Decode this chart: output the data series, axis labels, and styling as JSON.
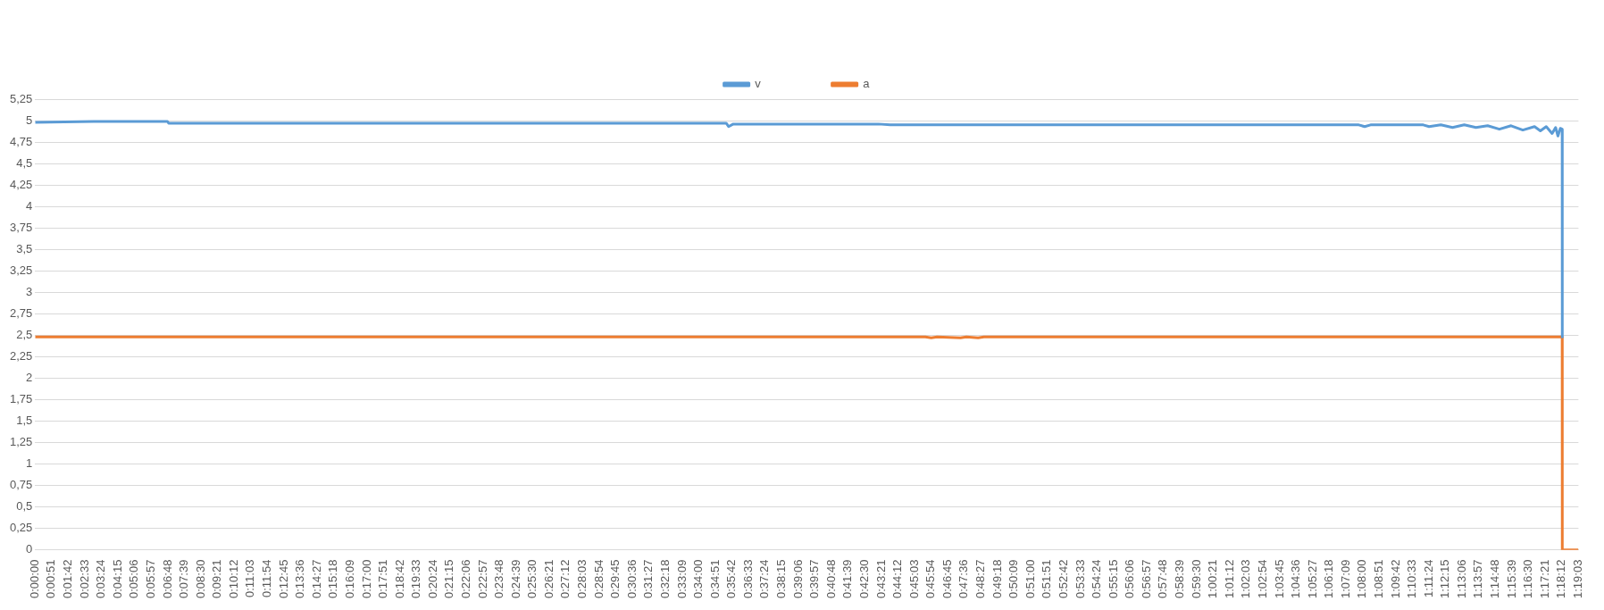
{
  "chart_data": {
    "type": "line",
    "legend": "top",
    "grid": "y",
    "marker": "none",
    "line_style": "solid",
    "xlim": [
      0,
      1.3175
    ],
    "ylim": [
      0,
      5.25
    ],
    "yticks": [
      0,
      {
        "value": 0.25,
        "label": "0,25"
      },
      {
        "value": 0.5,
        "label": "0,5"
      },
      {
        "value": 0.75,
        "label": "0,75"
      },
      1,
      {
        "value": 1.25,
        "label": "1,25"
      },
      {
        "value": 1.5,
        "label": "1,5"
      },
      {
        "value": 1.75,
        "label": "1,75"
      },
      2,
      {
        "value": 2.25,
        "label": "2,25"
      },
      {
        "value": 2.5,
        "label": "2,5"
      },
      {
        "value": 2.75,
        "label": "2,75"
      },
      3,
      {
        "value": 3.25,
        "label": "3,25"
      },
      {
        "value": 3.5,
        "label": "3,5"
      },
      {
        "value": 3.75,
        "label": "3,75"
      },
      4,
      {
        "value": 4.25,
        "label": "4,25"
      },
      {
        "value": 4.5,
        "label": "4,5"
      },
      {
        "value": 4.75,
        "label": "4,75"
      },
      5,
      {
        "value": 5.25,
        "label": "5,25"
      }
    ],
    "xticks": [
      {
        "value": 0,
        "label": "0:00:00"
      },
      {
        "value": 0.01417,
        "label": "0:00:51"
      },
      {
        "value": 0.02833,
        "label": "0:01:42"
      },
      {
        "value": 0.0425,
        "label": "0:02:33"
      },
      {
        "value": 0.05667,
        "label": "0:03:24"
      },
      {
        "value": 0.07083,
        "label": "0:04:15"
      },
      {
        "value": 0.085,
        "label": "0:05:06"
      },
      {
        "value": 0.09917,
        "label": "0:05:57"
      },
      {
        "value": 0.11333,
        "label": "0:06:48"
      },
      {
        "value": 0.1275,
        "label": "0:07:39"
      },
      {
        "value": 0.14167,
        "label": "0:08:30"
      },
      {
        "value": 0.15583,
        "label": "0:09:21"
      },
      {
        "value": 0.17,
        "label": "0:10:12"
      },
      {
        "value": 0.18417,
        "label": "0:11:03"
      },
      {
        "value": 0.19833,
        "label": "0:11:54"
      },
      {
        "value": 0.2125,
        "label": "0:12:45"
      },
      {
        "value": 0.22667,
        "label": "0:13:36"
      },
      {
        "value": 0.24083,
        "label": "0:14:27"
      },
      {
        "value": 0.255,
        "label": "0:15:18"
      },
      {
        "value": 0.26917,
        "label": "0:16:09"
      },
      {
        "value": 0.28333,
        "label": "0:17:00"
      },
      {
        "value": 0.2975,
        "label": "0:17:51"
      },
      {
        "value": 0.31167,
        "label": "0:18:42"
      },
      {
        "value": 0.32583,
        "label": "0:19:33"
      },
      {
        "value": 0.34,
        "label": "0:20:24"
      },
      {
        "value": 0.35417,
        "label": "0:21:15"
      },
      {
        "value": 0.36833,
        "label": "0:22:06"
      },
      {
        "value": 0.3825,
        "label": "0:22:57"
      },
      {
        "value": 0.39667,
        "label": "0:23:48"
      },
      {
        "value": 0.41083,
        "label": "0:24:39"
      },
      {
        "value": 0.425,
        "label": "0:25:30"
      },
      {
        "value": 0.43917,
        "label": "0:26:21"
      },
      {
        "value": 0.45333,
        "label": "0:27:12"
      },
      {
        "value": 0.4675,
        "label": "0:28:03"
      },
      {
        "value": 0.48167,
        "label": "0:28:54"
      },
      {
        "value": 0.49583,
        "label": "0:29:45"
      },
      {
        "value": 0.51,
        "label": "0:30:36"
      },
      {
        "value": 0.52417,
        "label": "0:31:27"
      },
      {
        "value": 0.53833,
        "label": "0:32:18"
      },
      {
        "value": 0.5525,
        "label": "0:33:09"
      },
      {
        "value": 0.56667,
        "label": "0:34:00"
      },
      {
        "value": 0.58083,
        "label": "0:34:51"
      },
      {
        "value": 0.595,
        "label": "0:35:42"
      },
      {
        "value": 0.60917,
        "label": "0:36:33"
      },
      {
        "value": 0.62333,
        "label": "0:37:24"
      },
      {
        "value": 0.6375,
        "label": "0:38:15"
      },
      {
        "value": 0.65167,
        "label": "0:39:06"
      },
      {
        "value": 0.66583,
        "label": "0:39:57"
      },
      {
        "value": 0.68,
        "label": "0:40:48"
      },
      {
        "value": 0.69417,
        "label": "0:41:39"
      },
      {
        "value": 0.70833,
        "label": "0:42:30"
      },
      {
        "value": 0.7225,
        "label": "0:43:21"
      },
      {
        "value": 0.73667,
        "label": "0:44:12"
      },
      {
        "value": 0.75083,
        "label": "0:45:03"
      },
      {
        "value": 0.765,
        "label": "0:45:54"
      },
      {
        "value": 0.77917,
        "label": "0:46:45"
      },
      {
        "value": 0.79333,
        "label": "0:47:36"
      },
      {
        "value": 0.8075,
        "label": "0:48:27"
      },
      {
        "value": 0.82167,
        "label": "0:49:18"
      },
      {
        "value": 0.83583,
        "label": "0:50:09"
      },
      {
        "value": 0.85,
        "label": "0:51:00"
      },
      {
        "value": 0.86417,
        "label": "0:51:51"
      },
      {
        "value": 0.87833,
        "label": "0:52:42"
      },
      {
        "value": 0.8925,
        "label": "0:53:33"
      },
      {
        "value": 0.90667,
        "label": "0:54:24"
      },
      {
        "value": 0.92083,
        "label": "0:55:15"
      },
      {
        "value": 0.935,
        "label": "0:56:06"
      },
      {
        "value": 0.94917,
        "label": "0:56:57"
      },
      {
        "value": 0.96333,
        "label": "0:57:48"
      },
      {
        "value": 0.9775,
        "label": "0:58:39"
      },
      {
        "value": 0.99167,
        "label": "0:59:30"
      },
      {
        "value": 1.00583,
        "label": "1:00:21"
      },
      {
        "value": 1.02,
        "label": "1:01:12"
      },
      {
        "value": 1.03417,
        "label": "1:02:03"
      },
      {
        "value": 1.04833,
        "label": "1:02:54"
      },
      {
        "value": 1.0625,
        "label": "1:03:45"
      },
      {
        "value": 1.07667,
        "label": "1:04:36"
      },
      {
        "value": 1.09083,
        "label": "1:05:27"
      },
      {
        "value": 1.105,
        "label": "1:06:18"
      },
      {
        "value": 1.11917,
        "label": "1:07:09"
      },
      {
        "value": 1.13333,
        "label": "1:08:00"
      },
      {
        "value": 1.1475,
        "label": "1:08:51"
      },
      {
        "value": 1.16167,
        "label": "1:09:42"
      },
      {
        "value": 1.17583,
        "label": "1:10:33"
      },
      {
        "value": 1.19,
        "label": "1:11:24"
      },
      {
        "value": 1.20417,
        "label": "1:12:15"
      },
      {
        "value": 1.21833,
        "label": "1:13:06"
      },
      {
        "value": 1.2325,
        "label": "1:13:57"
      },
      {
        "value": 1.24667,
        "label": "1:14:48"
      },
      {
        "value": 1.26083,
        "label": "1:15:39"
      },
      {
        "value": 1.275,
        "label": "1:16:30"
      },
      {
        "value": 1.28917,
        "label": "1:17:21"
      },
      {
        "value": 1.30333,
        "label": "1:18:12"
      },
      {
        "value": 1.3175,
        "label": "1:19:03"
      }
    ],
    "series": [
      {
        "name": "v",
        "color": "#5b9bd5",
        "x": [
          0,
          0.05,
          0.1,
          0.113,
          0.114,
          0.59,
          0.592,
          0.596,
          0.72,
          0.73,
          1.13,
          1.135,
          1.14,
          1.185,
          1.19,
          1.2,
          1.21,
          1.22,
          1.23,
          1.24,
          1.25,
          1.26,
          1.27,
          1.28,
          1.285,
          1.29,
          1.295,
          1.298,
          1.3,
          1.302,
          1.3036,
          1.3037
        ],
        "values": [
          4.98,
          4.99,
          4.99,
          4.99,
          4.97,
          4.97,
          4.93,
          4.96,
          4.96,
          4.95,
          4.95,
          4.93,
          4.95,
          4.95,
          4.93,
          4.95,
          4.92,
          4.95,
          4.92,
          4.94,
          4.9,
          4.94,
          4.89,
          4.93,
          4.88,
          4.93,
          4.85,
          4.92,
          4.82,
          4.91,
          4.9,
          2.48
        ]
      },
      {
        "name": "a",
        "color": "#ed7d31",
        "x": [
          0,
          0.76,
          0.765,
          0.77,
          0.79,
          0.795,
          0.805,
          0.81,
          1.3036,
          1.3037,
          1.3175
        ],
        "values": [
          2.48,
          2.48,
          2.47,
          2.48,
          2.47,
          2.48,
          2.47,
          2.48,
          2.48,
          0,
          0
        ]
      }
    ]
  }
}
